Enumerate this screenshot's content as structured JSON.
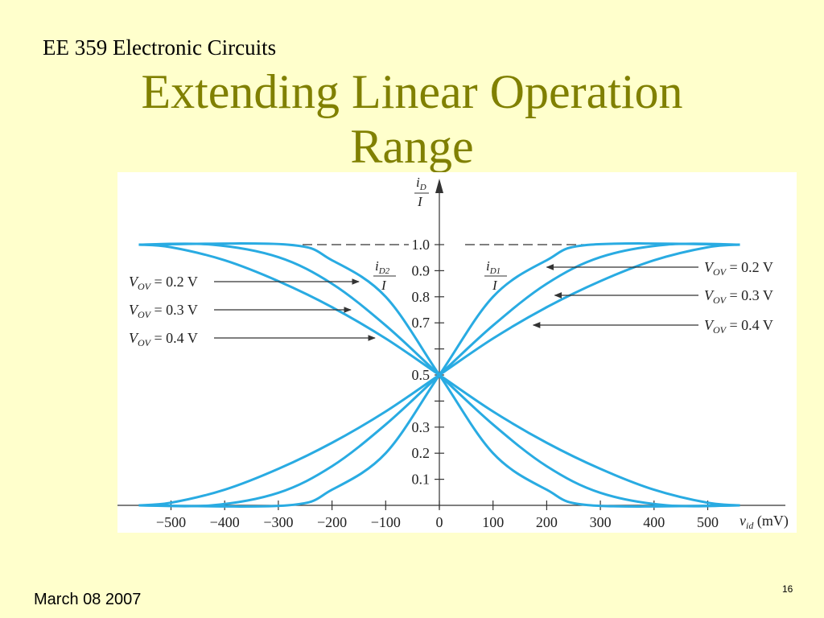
{
  "header": {
    "course": "EE 359 Electronic Circuits"
  },
  "slide": {
    "title_line1": "Extending Linear Operation",
    "title_line2": "Range",
    "date": "March 08 2007",
    "page_number": "16"
  },
  "colors": {
    "background": "#ffffcc",
    "title": "#808000",
    "curve": "#29abe2",
    "panel": "#ffffff"
  },
  "chart_data": {
    "type": "line",
    "xlabel": "v_id (mV)",
    "ylabel": "i_D / I",
    "xlim": [
      -580,
      620
    ],
    "ylim": [
      0,
      1.15
    ],
    "xticks": [
      "−500",
      "−400",
      "−300",
      "−200",
      "−100",
      "0",
      "100",
      "200",
      "300",
      "400",
      "500"
    ],
    "xtick_values": [
      -500,
      -400,
      -300,
      -200,
      -100,
      0,
      100,
      200,
      300,
      400,
      500
    ],
    "ytick_values": [
      0.1,
      0.2,
      0.3,
      0.4,
      0.5,
      0.6,
      0.7,
      0.8,
      0.9,
      1.0
    ],
    "ytick_labels": [
      "0.1",
      "0.2",
      "0.3",
      "",
      "0.5",
      "",
      "0.7",
      "0.8",
      "0.9",
      "1.0"
    ],
    "reference_line": {
      "y": 1.0,
      "style": "dashed"
    },
    "series": [
      {
        "name": "V_OV = 0.2 V",
        "curve": "iD1",
        "x": [
          -560,
          -283,
          -200,
          -100,
          0,
          100,
          200,
          283,
          560
        ],
        "y": [
          0,
          0,
          0.06,
          0.2,
          0.5,
          0.8,
          0.94,
          1.0,
          1.0
        ]
      },
      {
        "name": "V_OV = 0.3 V",
        "curve": "iD1",
        "x": [
          -560,
          -424,
          -300,
          -200,
          -100,
          0,
          100,
          200,
          300,
          424,
          560
        ],
        "y": [
          0,
          0,
          0.048,
          0.15,
          0.31,
          0.5,
          0.69,
          0.85,
          0.952,
          1.0,
          1.0
        ]
      },
      {
        "name": "V_OV = 0.4 V",
        "curve": "iD1",
        "x": [
          -560,
          -500,
          -400,
          -300,
          -200,
          -100,
          0,
          100,
          200,
          300,
          400,
          500,
          560
        ],
        "y": [
          0,
          0.01,
          0.06,
          0.14,
          0.24,
          0.36,
          0.5,
          0.64,
          0.76,
          0.86,
          0.94,
          0.99,
          1.0
        ]
      },
      {
        "name": "V_OV = 0.2 V",
        "curve": "iD2",
        "x": [
          -560,
          -283,
          -200,
          -100,
          0,
          100,
          200,
          283,
          560
        ],
        "y": [
          1.0,
          1.0,
          0.94,
          0.8,
          0.5,
          0.2,
          0.06,
          0,
          0
        ]
      },
      {
        "name": "V_OV = 0.3 V",
        "curve": "iD2",
        "x": [
          -560,
          -424,
          -300,
          -200,
          -100,
          0,
          100,
          200,
          300,
          424,
          560
        ],
        "y": [
          1.0,
          1.0,
          0.952,
          0.85,
          0.69,
          0.5,
          0.31,
          0.15,
          0.048,
          0,
          0
        ]
      },
      {
        "name": "V_OV = 0.4 V",
        "curve": "iD2",
        "x": [
          -560,
          -500,
          -400,
          -300,
          -200,
          -100,
          0,
          100,
          200,
          300,
          400,
          500,
          560
        ],
        "y": [
          1.0,
          0.99,
          0.94,
          0.86,
          0.76,
          0.64,
          0.5,
          0.36,
          0.24,
          0.14,
          0.06,
          0.01,
          0
        ]
      }
    ],
    "curve_labels": [
      {
        "num": "i",
        "sub": "D2",
        "den": "I"
      },
      {
        "num": "i",
        "sub": "D1",
        "den": "I"
      }
    ],
    "annotations": [
      {
        "side": "left",
        "label": "V",
        "sub": "OV",
        "value": "= 0.2 V",
        "target": [
          -150,
          0.9
        ]
      },
      {
        "side": "left",
        "label": "V",
        "sub": "OV",
        "value": "= 0.3 V",
        "target": [
          -165,
          0.8
        ]
      },
      {
        "side": "left",
        "label": "V",
        "sub": "OV",
        "value": "= 0.4 V",
        "target": [
          -120,
          0.69
        ]
      },
      {
        "side": "right",
        "label": "V",
        "sub": "OV",
        "value": "= 0.2 V",
        "target": [
          200,
          0.92
        ]
      },
      {
        "side": "right",
        "label": "V",
        "sub": "OV",
        "value": "= 0.3 V",
        "target": [
          215,
          0.81
        ]
      },
      {
        "side": "right",
        "label": "V",
        "sub": "OV",
        "value": "= 0.4 V",
        "target": [
          175,
          0.7
        ]
      }
    ]
  }
}
